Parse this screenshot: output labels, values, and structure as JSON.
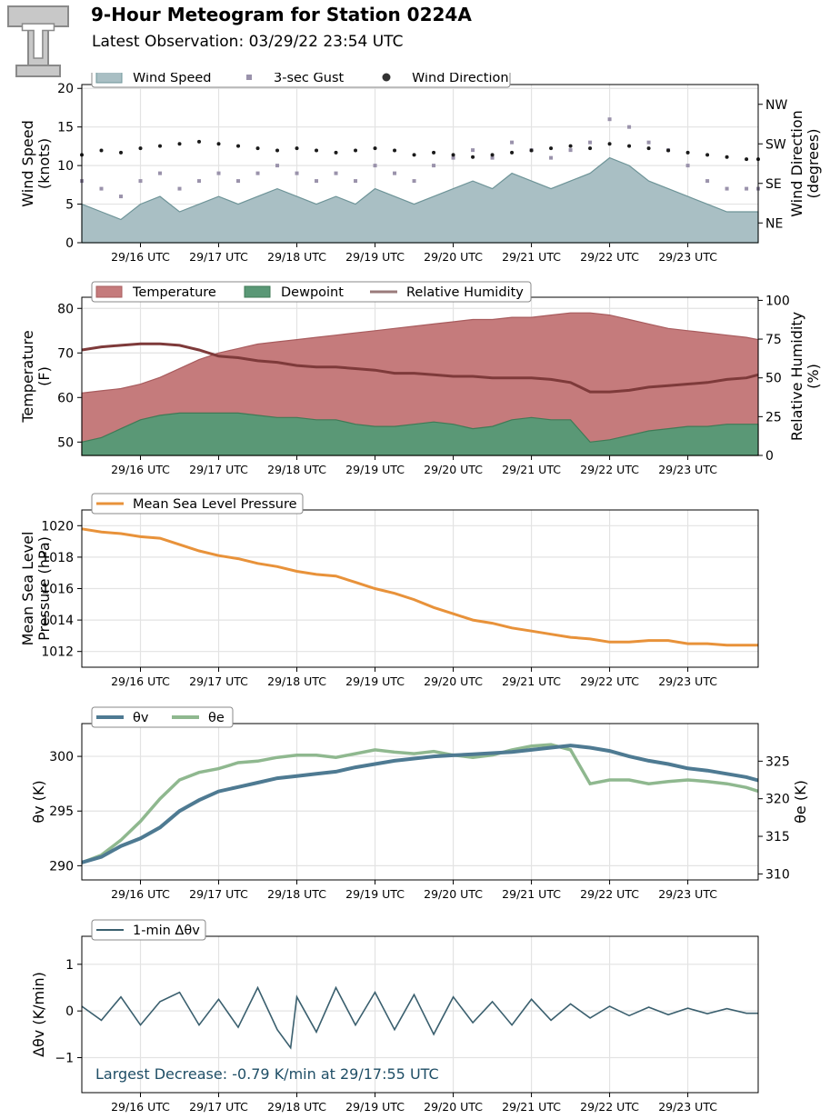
{
  "header": {
    "title": "9-Hour Meteogram for Station 0224A",
    "subtitle": "Latest Observation: 03/29/22 23:54 UTC",
    "logo_letter": "T"
  },
  "time_axis": {
    "ticks": [
      "29/16 UTC",
      "29/17 UTC",
      "29/18 UTC",
      "29/19 UTC",
      "29/20 UTC",
      "29/21 UTC",
      "29/22 UTC",
      "29/23 UTC"
    ],
    "start_hour": 15.25,
    "end_hour": 23.9
  },
  "chart_data": [
    {
      "id": "wind",
      "type": "area",
      "left_axis": {
        "label": [
          "Wind Speed",
          "(knots)"
        ],
        "ylim": [
          0,
          20.5
        ],
        "ticks": [
          "0",
          "5",
          "10",
          "15",
          "20"
        ]
      },
      "right_axis": {
        "label": [
          "Wind Direction",
          "(degrees)"
        ],
        "ticks": [
          "NE",
          "SE",
          "SW",
          "NW"
        ],
        "tick_degrees": [
          45,
          135,
          225,
          315
        ],
        "ylim": [
          0,
          360
        ]
      },
      "legend": {
        "placement": "top-left",
        "entries": [
          "Wind Speed",
          "3-sec Gust",
          "Wind Direction"
        ]
      },
      "series": [
        {
          "name": "Wind Speed",
          "color": "#a9bfc4",
          "edge": "#6e9498",
          "x": [
            15.25,
            15.5,
            15.75,
            16.0,
            16.25,
            16.5,
            16.75,
            17.0,
            17.25,
            17.5,
            17.75,
            18.0,
            18.25,
            18.5,
            18.75,
            19.0,
            19.25,
            19.5,
            19.75,
            20.0,
            20.25,
            20.5,
            20.75,
            21.0,
            21.25,
            21.5,
            21.75,
            22.0,
            22.25,
            22.5,
            22.75,
            23.0,
            23.25,
            23.5,
            23.75,
            23.9
          ],
          "values": [
            5,
            4,
            3,
            5,
            6,
            4,
            5,
            6,
            5,
            6,
            7,
            6,
            5,
            6,
            5,
            7,
            6,
            5,
            6,
            7,
            8,
            7,
            9,
            8,
            7,
            8,
            9,
            11,
            10,
            8,
            7,
            6,
            5,
            4,
            4,
            4
          ]
        },
        {
          "name": "3-sec Gust",
          "color": "#9a92ab",
          "x": [
            15.25,
            15.5,
            15.75,
            16.0,
            16.25,
            16.5,
            16.75,
            17.0,
            17.25,
            17.5,
            17.75,
            18.0,
            18.25,
            18.5,
            18.75,
            19.0,
            19.25,
            19.5,
            19.75,
            20.0,
            20.25,
            20.5,
            20.75,
            21.0,
            21.25,
            21.5,
            21.75,
            22.0,
            22.25,
            22.5,
            22.75,
            23.0,
            23.25,
            23.5,
            23.75,
            23.9
          ],
          "values": [
            8,
            7,
            6,
            8,
            9,
            7,
            8,
            9,
            8,
            9,
            10,
            9,
            8,
            9,
            8,
            10,
            9,
            8,
            10,
            11,
            12,
            11,
            13,
            12,
            11,
            12,
            13,
            16,
            15,
            13,
            12,
            10,
            8,
            7,
            7,
            7
          ]
        },
        {
          "name": "Wind Direction",
          "color": "#1a1a1a",
          "x": [
            15.25,
            15.5,
            15.75,
            16.0,
            16.25,
            16.5,
            16.75,
            17.0,
            17.25,
            17.5,
            17.75,
            18.0,
            18.25,
            18.5,
            18.75,
            19.0,
            19.25,
            19.5,
            19.75,
            20.0,
            20.25,
            20.5,
            20.75,
            21.0,
            21.25,
            21.5,
            21.75,
            22.0,
            22.25,
            22.5,
            22.75,
            23.0,
            23.25,
            23.5,
            23.75,
            23.9
          ],
          "values": [
            200,
            210,
            205,
            215,
            220,
            225,
            230,
            225,
            220,
            215,
            210,
            215,
            210,
            205,
            210,
            215,
            210,
            200,
            205,
            200,
            195,
            200,
            205,
            210,
            215,
            220,
            215,
            225,
            220,
            215,
            210,
            205,
            200,
            195,
            190,
            190
          ]
        }
      ]
    },
    {
      "id": "thermo",
      "type": "area",
      "left_axis": {
        "label": [
          "Temperature",
          "(F)"
        ],
        "ylim": [
          47,
          82.5
        ],
        "ticks": [
          "50",
          "60",
          "70",
          "80"
        ]
      },
      "right_axis": {
        "label": [
          "Relative Humidity",
          "(%)"
        ],
        "ylim": [
          0,
          102
        ],
        "ticks": [
          "0",
          "25",
          "50",
          "75",
          "100"
        ]
      },
      "legend": {
        "placement": "top-left",
        "entries": [
          "Temperature",
          "Dewpoint",
          "Relative Humidity"
        ]
      },
      "series": [
        {
          "name": "Temperature",
          "color": "#c57b7c",
          "edge": "#a85c5e",
          "x": [
            15.25,
            15.5,
            15.75,
            16.0,
            16.25,
            16.5,
            16.75,
            17.0,
            17.25,
            17.5,
            17.75,
            18.0,
            18.25,
            18.5,
            18.75,
            19.0,
            19.25,
            19.5,
            19.75,
            20.0,
            20.25,
            20.5,
            20.75,
            21.0,
            21.25,
            21.5,
            21.75,
            22.0,
            22.25,
            22.5,
            22.75,
            23.0,
            23.25,
            23.5,
            23.75,
            23.9
          ],
          "values": [
            61,
            61.5,
            62,
            63,
            64.5,
            66.5,
            68.5,
            70,
            71,
            72,
            72.5,
            73,
            73.5,
            74,
            74.5,
            75,
            75.5,
            76,
            76.5,
            77,
            77.5,
            77.5,
            78,
            78,
            78.5,
            79,
            79,
            78.5,
            77.5,
            76.5,
            75.5,
            75,
            74.5,
            74,
            73.5,
            73
          ]
        },
        {
          "name": "Dewpoint",
          "color": "#5a9876",
          "edge": "#3f7a56",
          "x": [
            15.25,
            15.5,
            15.75,
            16.0,
            16.25,
            16.5,
            16.75,
            17.0,
            17.25,
            17.5,
            17.75,
            18.0,
            18.25,
            18.5,
            18.75,
            19.0,
            19.25,
            19.5,
            19.75,
            20.0,
            20.25,
            20.5,
            20.75,
            21.0,
            21.25,
            21.5,
            21.75,
            22.0,
            22.25,
            22.5,
            22.75,
            23.0,
            23.25,
            23.5,
            23.75,
            23.9
          ],
          "values": [
            50,
            51,
            53,
            55,
            56,
            56.5,
            56.5,
            56.5,
            56.5,
            56,
            55.5,
            55.5,
            55,
            55,
            54,
            53.5,
            53.5,
            54,
            54.5,
            54,
            53,
            53.5,
            55,
            55.5,
            55,
            55,
            50,
            50.5,
            51.5,
            52.5,
            53,
            53.5,
            53.5,
            54,
            54,
            54
          ]
        },
        {
          "name": "Relative Humidity",
          "color": "#7e3a3a",
          "x": [
            15.25,
            15.5,
            15.75,
            16.0,
            16.25,
            16.5,
            16.75,
            17.0,
            17.25,
            17.5,
            17.75,
            18.0,
            18.25,
            18.5,
            18.75,
            19.0,
            19.25,
            19.5,
            19.75,
            20.0,
            20.25,
            20.5,
            20.75,
            21.0,
            21.25,
            21.5,
            21.75,
            22.0,
            22.25,
            22.5,
            22.75,
            23.0,
            23.25,
            23.5,
            23.75,
            23.9
          ],
          "values": [
            68,
            70,
            71,
            72,
            72,
            71,
            68,
            64,
            63,
            61,
            60,
            58,
            57,
            57,
            56,
            55,
            53,
            53,
            52,
            51,
            51,
            50,
            50,
            50,
            49,
            47,
            41,
            41,
            42,
            44,
            45,
            46,
            47,
            49,
            50,
            52
          ]
        }
      ]
    },
    {
      "id": "pressure",
      "type": "line",
      "left_axis": {
        "label": [
          "Mean Sea Level",
          "Pressure (hPa)"
        ],
        "ylim": [
          1011,
          1021
        ],
        "ticks": [
          "1012",
          "1014",
          "1016",
          "1018",
          "1020"
        ]
      },
      "legend": {
        "placement": "top-left",
        "entries": [
          "Mean Sea Level Pressure"
        ]
      },
      "series": [
        {
          "name": "Mean Sea Level Pressure",
          "color": "#e8923a",
          "x": [
            15.25,
            15.5,
            15.75,
            16.0,
            16.25,
            16.5,
            16.75,
            17.0,
            17.25,
            17.5,
            17.75,
            18.0,
            18.25,
            18.5,
            18.75,
            19.0,
            19.25,
            19.5,
            19.75,
            20.0,
            20.25,
            20.5,
            20.75,
            21.0,
            21.25,
            21.5,
            21.75,
            22.0,
            22.25,
            22.5,
            22.75,
            23.0,
            23.25,
            23.5,
            23.75,
            23.9
          ],
          "values": [
            1019.8,
            1019.6,
            1019.5,
            1019.3,
            1019.2,
            1018.8,
            1018.4,
            1018.1,
            1017.9,
            1017.6,
            1017.4,
            1017.1,
            1016.9,
            1016.8,
            1016.4,
            1016.0,
            1015.7,
            1015.3,
            1014.8,
            1014.4,
            1014.0,
            1013.8,
            1013.5,
            1013.3,
            1013.1,
            1012.9,
            1012.8,
            1012.6,
            1012.6,
            1012.7,
            1012.7,
            1012.5,
            1012.5,
            1012.4,
            1012.4,
            1012.4
          ]
        }
      ]
    },
    {
      "id": "theta",
      "type": "line",
      "left_axis": {
        "label": [
          "θv (K)"
        ],
        "ylim": [
          288.7,
          303
        ],
        "ticks": [
          "290",
          "295",
          "300"
        ]
      },
      "right_axis": {
        "label": [
          "θe (K)"
        ],
        "ylim": [
          309.2,
          330
        ],
        "ticks": [
          "310",
          "315",
          "320",
          "325"
        ]
      },
      "legend": {
        "placement": "top-left",
        "entries": [
          "θv",
          "θe"
        ]
      },
      "series": [
        {
          "name": "θv",
          "color": "#4e7a92",
          "x": [
            15.25,
            15.5,
            15.75,
            16.0,
            16.25,
            16.5,
            16.75,
            17.0,
            17.25,
            17.5,
            17.75,
            18.0,
            18.25,
            18.5,
            18.75,
            19.0,
            19.25,
            19.5,
            19.75,
            20.0,
            20.25,
            20.5,
            20.75,
            21.0,
            21.25,
            21.5,
            21.75,
            22.0,
            22.25,
            22.5,
            22.75,
            23.0,
            23.25,
            23.5,
            23.75,
            23.9
          ],
          "values": [
            290.3,
            290.8,
            291.8,
            292.5,
            293.5,
            295,
            296,
            296.8,
            297.2,
            297.6,
            298,
            298.2,
            298.4,
            298.6,
            299,
            299.3,
            299.6,
            299.8,
            300,
            300.1,
            300.2,
            300.3,
            300.4,
            300.6,
            300.8,
            301,
            300.8,
            300.5,
            300,
            299.6,
            299.3,
            298.9,
            298.7,
            298.4,
            298.1,
            297.8
          ]
        },
        {
          "name": "θe",
          "color": "#8fb88f",
          "x": [
            15.25,
            15.5,
            15.75,
            16.0,
            16.25,
            16.5,
            16.75,
            17.0,
            17.25,
            17.5,
            17.75,
            18.0,
            18.25,
            18.5,
            18.75,
            19.0,
            19.25,
            19.5,
            19.75,
            20.0,
            20.25,
            20.5,
            20.75,
            21.0,
            21.25,
            21.5,
            21.75,
            22.0,
            22.25,
            22.5,
            22.75,
            23.0,
            23.25,
            23.5,
            23.75,
            23.9
          ],
          "values": [
            311.5,
            312.5,
            314.5,
            317,
            320,
            322.5,
            323.5,
            324,
            324.8,
            325,
            325.5,
            325.8,
            325.8,
            325.5,
            326,
            326.5,
            326.2,
            326,
            326.3,
            325.8,
            325.5,
            325.8,
            326.5,
            327,
            327.2,
            326.5,
            322,
            322.5,
            322.5,
            322,
            322.3,
            322.5,
            322.3,
            322,
            321.5,
            321
          ]
        }
      ]
    },
    {
      "id": "dtheta",
      "type": "line",
      "left_axis": {
        "label": [
          "Δθv (K/min)"
        ],
        "ylim": [
          -1.75,
          1.6
        ],
        "ticks": [
          "−1",
          "0",
          "1"
        ]
      },
      "legend": {
        "placement": "top-left",
        "entries": [
          "1-min Δθv"
        ]
      },
      "annotation": "Largest Decrease: -0.79 K/min at 29/17:55 UTC",
      "series": [
        {
          "name": "1-min Δθv",
          "color": "#3a5f6e",
          "x": [
            15.25,
            15.5,
            15.75,
            16.0,
            16.25,
            16.5,
            16.75,
            17.0,
            17.25,
            17.5,
            17.75,
            17.92,
            18.0,
            18.25,
            18.5,
            18.75,
            19.0,
            19.25,
            19.5,
            19.75,
            20.0,
            20.25,
            20.5,
            20.75,
            21.0,
            21.25,
            21.5,
            21.75,
            22.0,
            22.25,
            22.5,
            22.75,
            23.0,
            23.25,
            23.5,
            23.75,
            23.9
          ],
          "values": [
            0.1,
            -0.2,
            0.3,
            -0.3,
            0.2,
            0.4,
            -0.3,
            0.25,
            -0.35,
            0.5,
            -0.4,
            -0.79,
            0.3,
            -0.45,
            0.5,
            -0.3,
            0.4,
            -0.4,
            0.35,
            -0.5,
            0.3,
            -0.25,
            0.2,
            -0.3,
            0.25,
            -0.2,
            0.15,
            -0.15,
            0.1,
            -0.1,
            0.08,
            -0.08,
            0.06,
            -0.06,
            0.05,
            -0.05,
            -0.05
          ]
        }
      ]
    }
  ]
}
